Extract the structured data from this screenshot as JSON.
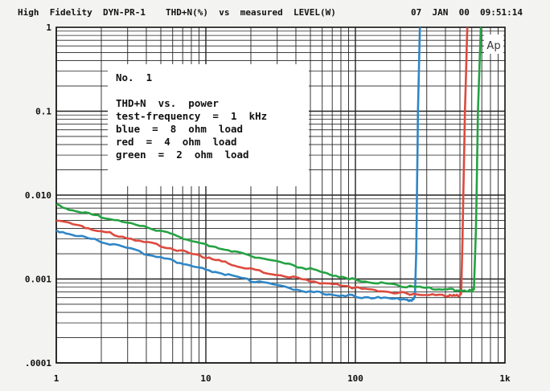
{
  "header": {
    "left": "High  Fidelity  DYN-PR-1",
    "title": "THD+N(%)  vs  measured  LEVEL(W)",
    "date": "07  JAN  00",
    "time": "09:51:14"
  },
  "logo": "Ap",
  "notes": [
    "No.  1",
    "THD+N  vs.  power",
    "test-frequency  =  1  kHz",
    "blue  =  8  ohm  load",
    "red  =  4  ohm  load",
    "green  =  2  ohm  load"
  ],
  "chart_data": {
    "type": "line",
    "title": "THD+N(%)  vs  measured  LEVEL(W)",
    "xlabel": "",
    "ylabel": "",
    "x_scale": "log",
    "y_scale": "log",
    "xlim": [
      1,
      1000
    ],
    "ylim": [
      0.0001,
      1
    ],
    "x_ticks": [
      "1",
      "10",
      "100",
      "1k"
    ],
    "y_ticks": [
      "1",
      "0.1",
      "0.010",
      "0.001",
      ".0001"
    ],
    "grid": true,
    "series": [
      {
        "name": "blue = 8 ohm load",
        "color": "#2f86c6",
        "x": [
          1,
          2,
          5,
          10,
          20,
          50,
          100,
          200,
          240,
          250,
          255,
          262,
          270
        ],
        "y": [
          0.0038,
          0.0028,
          0.0018,
          0.0013,
          0.00095,
          0.0007,
          0.00062,
          0.00057,
          0.00056,
          0.00062,
          0.002,
          0.1,
          1
        ]
      },
      {
        "name": "red = 4 ohm load",
        "color": "#dd4a3e",
        "x": [
          1,
          2,
          5,
          10,
          20,
          50,
          100,
          200,
          400,
          500,
          510,
          520,
          540,
          560
        ],
        "y": [
          0.005,
          0.0037,
          0.0025,
          0.0018,
          0.0013,
          0.00095,
          0.00078,
          0.00068,
          0.00063,
          0.00063,
          0.0007,
          0.003,
          0.1,
          1
        ]
      },
      {
        "name": "green = 2 ohm load",
        "color": "#25a243",
        "x": [
          1,
          2,
          5,
          10,
          20,
          50,
          100,
          200,
          400,
          600,
          620,
          640,
          660,
          690
        ],
        "y": [
          0.0075,
          0.0055,
          0.0037,
          0.0026,
          0.0019,
          0.0013,
          0.00098,
          0.00082,
          0.00075,
          0.00073,
          0.00075,
          0.004,
          0.1,
          1
        ]
      }
    ]
  }
}
